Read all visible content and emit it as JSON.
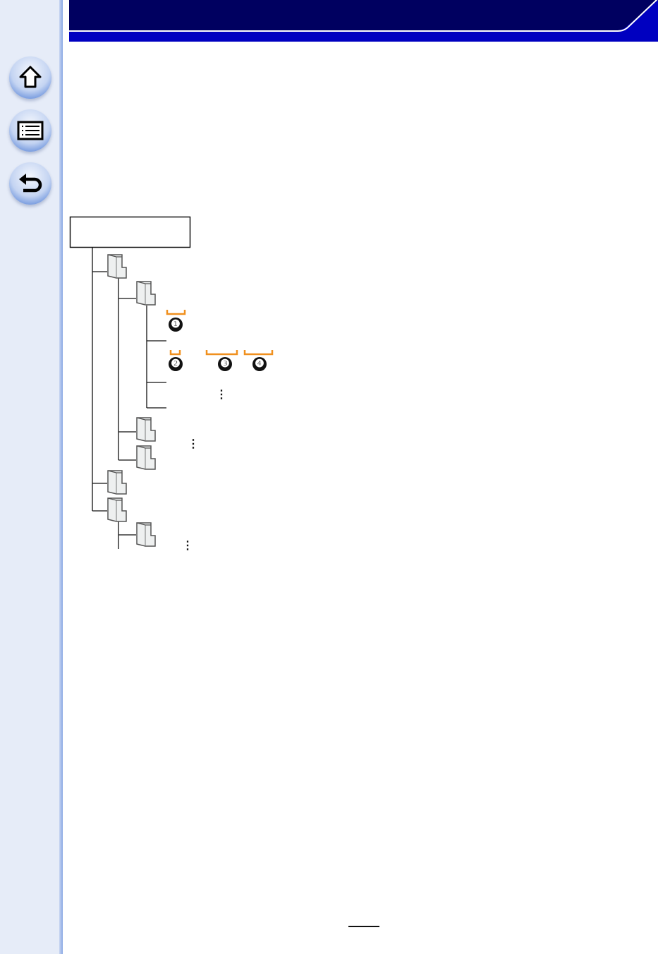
{
  "nav": {
    "buttons": [
      {
        "name": "home",
        "icon": "home-icon"
      },
      {
        "name": "contents",
        "icon": "list-icon"
      },
      {
        "name": "back",
        "icon": "return-icon"
      }
    ]
  },
  "colors": {
    "header_dark": "#000060",
    "header_blue": "#0000c0",
    "sidebar": "#e6ecf8",
    "bracket": "#f0901e"
  },
  "tree": {
    "markers": [
      "❶",
      "❷",
      "❸",
      "❹"
    ],
    "ellipsis": "⋮"
  }
}
